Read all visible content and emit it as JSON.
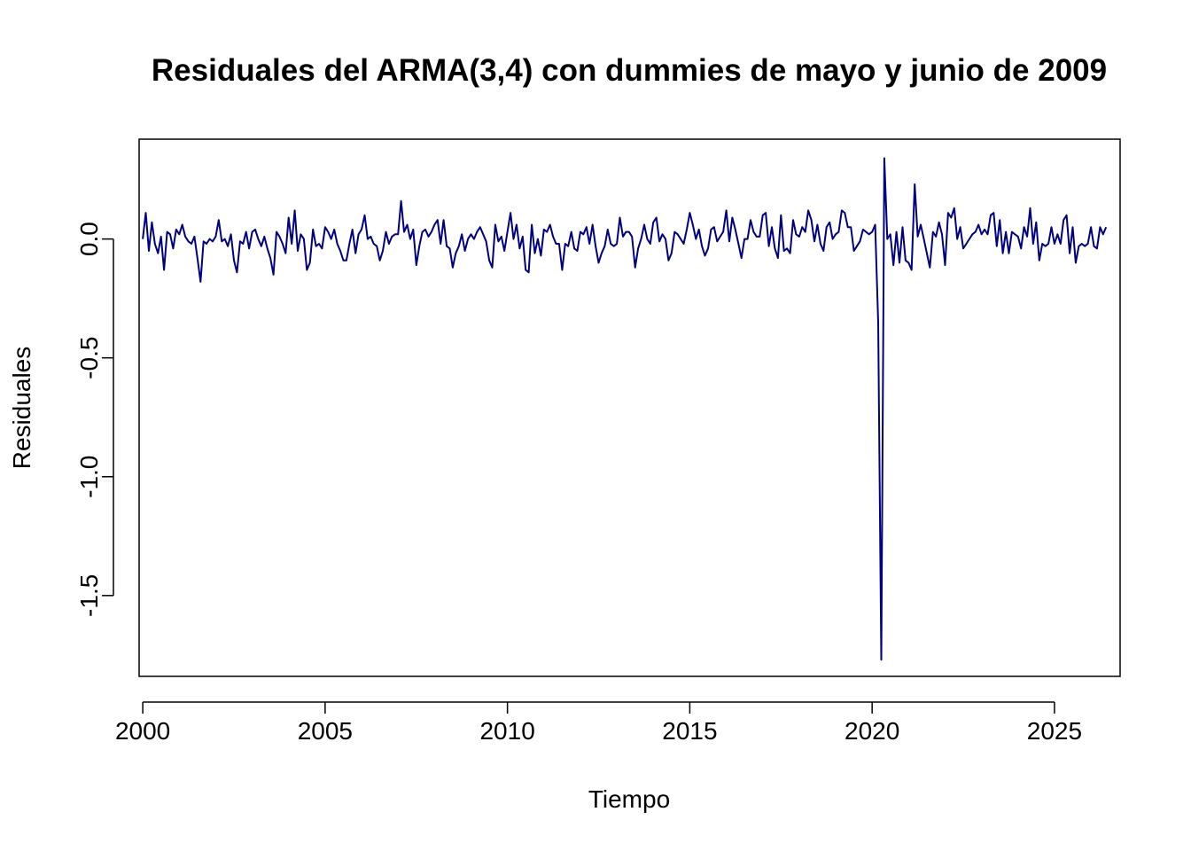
{
  "chart_data": {
    "type": "line",
    "title": "Residuales del ARMA(3,4) con dummies de mayo y junio de 2009",
    "xlabel": "Tiempo",
    "ylabel": "Residuales",
    "xlim": [
      1999.9,
      2026.8
    ],
    "ylim": [
      -1.84,
      0.42
    ],
    "x_ticks": [
      2000,
      2005,
      2010,
      2015,
      2020,
      2025
    ],
    "x_tick_labels": [
      "2000",
      "2005",
      "2010",
      "2015",
      "2020",
      "2025"
    ],
    "y_ticks": [
      0.0,
      -0.5,
      -1.0,
      -1.5
    ],
    "y_tick_labels": [
      "0.0",
      "-0.5",
      "-1.0",
      "-1.5"
    ],
    "grid": false,
    "line_color": "#00007F",
    "start": [
      2000,
      1
    ],
    "frequency": 12,
    "series": [
      {
        "values": [
          0.0,
          0.11,
          -0.05,
          0.07,
          -0.02,
          -0.06,
          0.01,
          -0.13,
          0.03,
          0.02,
          -0.04,
          0.04,
          0.02,
          0.06,
          0.01,
          -0.01,
          -0.02,
          0.01,
          -0.08,
          -0.18,
          -0.01,
          -0.02,
          0.0,
          -0.01,
          0.01,
          0.08,
          -0.01,
          0.0,
          -0.03,
          0.02,
          -0.09,
          -0.14,
          -0.01,
          -0.02,
          0.03,
          -0.04,
          0.03,
          0.04,
          0.0,
          -0.03,
          0.01,
          -0.04,
          -0.08,
          -0.15,
          0.03,
          0.01,
          -0.02,
          -0.06,
          0.09,
          -0.02,
          0.12,
          -0.05,
          0.02,
          0.0,
          -0.13,
          -0.1,
          0.04,
          -0.03,
          -0.02,
          -0.04,
          0.05,
          0.03,
          0.0,
          0.04,
          -0.02,
          -0.05,
          -0.09,
          -0.09,
          -0.02,
          0.04,
          -0.06,
          0.02,
          0.04,
          0.1,
          0.0,
          0.01,
          -0.02,
          -0.03,
          -0.09,
          -0.05,
          0.03,
          -0.02,
          0.01,
          0.02,
          0.02,
          0.16,
          0.03,
          0.06,
          0.0,
          0.04,
          -0.11,
          -0.03,
          0.03,
          0.04,
          0.01,
          0.03,
          0.06,
          0.08,
          -0.02,
          0.08,
          -0.03,
          -0.04,
          -0.12,
          -0.06,
          -0.03,
          0.02,
          -0.05,
          0.0,
          0.02,
          0.0,
          0.03,
          0.05,
          0.02,
          -0.01,
          -0.09,
          -0.12,
          0.06,
          -0.01,
          0.01,
          -0.05,
          0.03,
          0.11,
          0.0,
          0.06,
          -0.04,
          0.01,
          -0.13,
          -0.14,
          0.06,
          -0.06,
          0.0,
          -0.07,
          0.04,
          0.03,
          0.06,
          0.01,
          -0.02,
          -0.02,
          -0.13,
          -0.02,
          -0.03,
          0.03,
          -0.04,
          -0.05,
          0.03,
          0.02,
          0.05,
          -0.02,
          0.06,
          -0.03,
          -0.1,
          -0.06,
          -0.03,
          0.04,
          -0.02,
          -0.03,
          -0.02,
          0.09,
          0.01,
          0.03,
          0.03,
          0.01,
          -0.12,
          -0.04,
          0.0,
          0.06,
          0.0,
          -0.02,
          0.07,
          0.09,
          -0.01,
          0.02,
          0.0,
          -0.09,
          -0.06,
          0.03,
          0.02,
          0.0,
          -0.02,
          0.04,
          0.11,
          0.06,
          0.0,
          0.04,
          -0.03,
          -0.07,
          -0.04,
          0.04,
          0.05,
          -0.01,
          0.01,
          0.03,
          0.12,
          -0.01,
          0.09,
          0.04,
          -0.02,
          -0.08,
          0.0,
          0.0,
          0.08,
          0.03,
          0.01,
          0.01,
          0.1,
          0.11,
          -0.03,
          0.05,
          -0.04,
          -0.08,
          0.1,
          -0.05,
          -0.04,
          -0.06,
          0.08,
          0.02,
          0.01,
          0.05,
          0.03,
          0.12,
          0.08,
          -0.01,
          0.06,
          -0.02,
          -0.05,
          0.05,
          0.07,
          0.0,
          0.02,
          0.03,
          0.12,
          0.11,
          0.05,
          0.05,
          -0.05,
          -0.03,
          -0.01,
          0.04,
          0.03,
          0.02,
          0.03,
          0.06,
          -0.35,
          -1.77,
          0.34,
          0.0,
          0.02,
          -0.11,
          0.03,
          -0.1,
          0.05,
          -0.09,
          -0.1,
          -0.13,
          0.23,
          0.01,
          0.06,
          0.0,
          -0.06,
          -0.12,
          0.03,
          0.01,
          0.07,
          0.02,
          -0.11,
          0.11,
          0.09,
          0.13,
          0.0,
          0.05,
          -0.04,
          -0.02,
          0.0,
          0.02,
          0.03,
          0.06,
          0.02,
          0.04,
          0.02,
          0.1,
          0.11,
          -0.03,
          0.08,
          -0.06,
          0.03,
          -0.06,
          0.03,
          0.02,
          0.01,
          -0.04,
          0.05,
          0.01,
          0.13,
          -0.02,
          0.07,
          -0.09,
          -0.02,
          -0.03,
          -0.02,
          0.05,
          -0.02,
          0.02,
          -0.02,
          0.08,
          0.1,
          -0.06,
          0.05,
          -0.1,
          -0.03,
          -0.02,
          -0.03,
          -0.02,
          0.05,
          -0.03,
          -0.04,
          0.05,
          0.02,
          0.05
        ]
      }
    ]
  }
}
